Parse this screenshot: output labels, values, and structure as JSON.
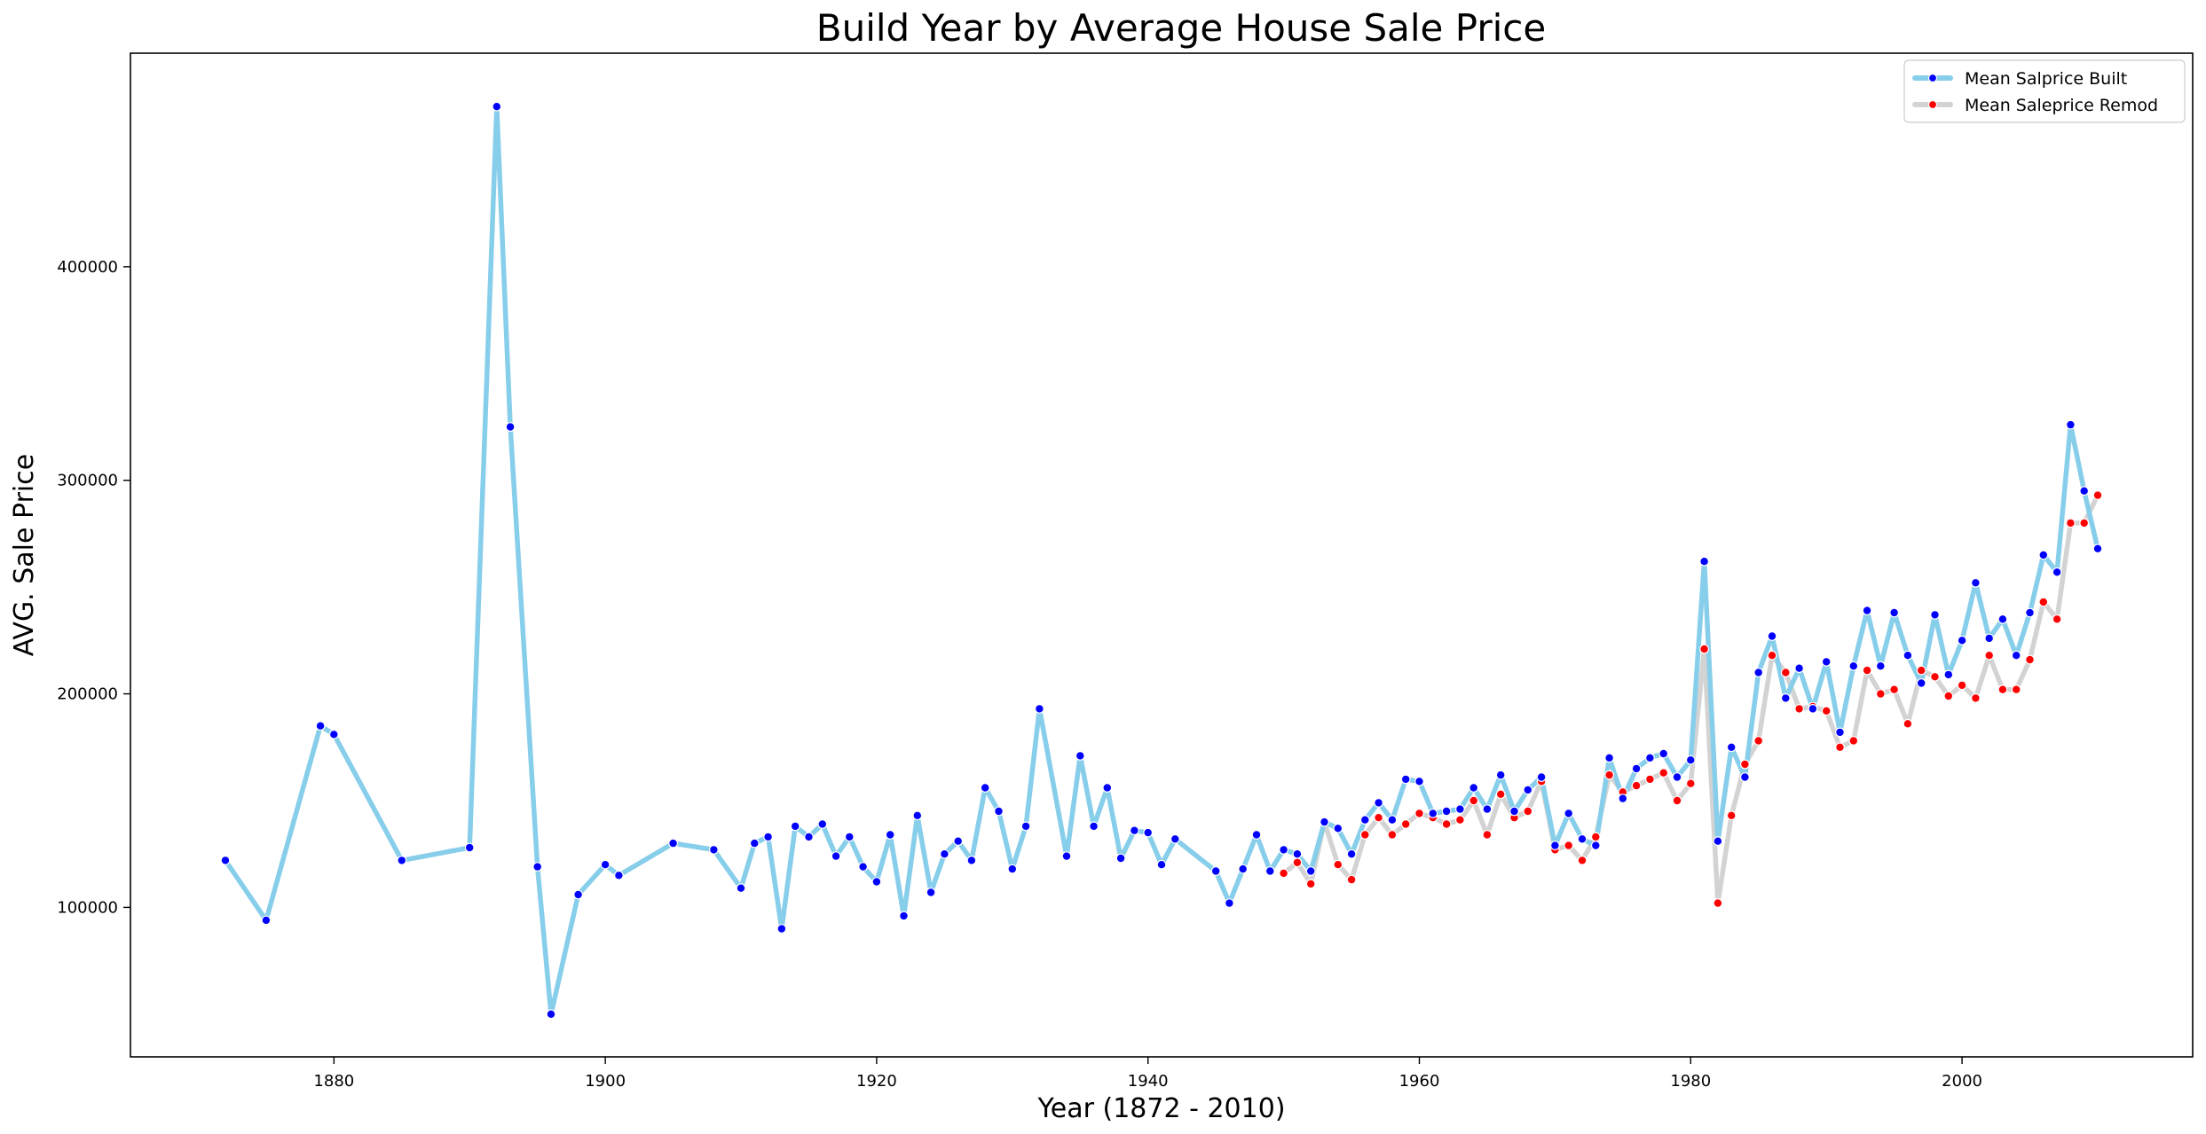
{
  "chart_data": {
    "type": "line",
    "title": "Build Year by Average House Sale Price",
    "xlabel": "Year (1872 - 2010)",
    "ylabel": "AVG. Sale Price",
    "xlim": [
      1865,
      2017
    ],
    "ylim": [
      30000,
      500000
    ],
    "xticks": [
      1880,
      1900,
      1920,
      1940,
      1960,
      1980,
      2000
    ],
    "yticks": [
      100000,
      200000,
      300000,
      400000
    ],
    "legend_position": "top-right",
    "grid": false,
    "series": [
      {
        "name": "Mean Salprice Built",
        "line_color": "#87ceeb",
        "marker_color": "#0000ff",
        "points": [
          [
            1872,
            122000
          ],
          [
            1875,
            94000
          ],
          [
            1879,
            185000
          ],
          [
            1880,
            181000
          ],
          [
            1885,
            122000
          ],
          [
            1890,
            128000
          ],
          [
            1892,
            475000
          ],
          [
            1893,
            325000
          ],
          [
            1895,
            119000
          ],
          [
            1896,
            50000
          ],
          [
            1898,
            106000
          ],
          [
            1900,
            120000
          ],
          [
            1901,
            115000
          ],
          [
            1905,
            130000
          ],
          [
            1908,
            127000
          ],
          [
            1910,
            109000
          ],
          [
            1911,
            130000
          ],
          [
            1912,
            133000
          ],
          [
            1913,
            90000
          ],
          [
            1914,
            138000
          ],
          [
            1915,
            133000
          ],
          [
            1916,
            139000
          ],
          [
            1917,
            124000
          ],
          [
            1918,
            133000
          ],
          [
            1919,
            119000
          ],
          [
            1920,
            112000
          ],
          [
            1921,
            134000
          ],
          [
            1922,
            96000
          ],
          [
            1923,
            143000
          ],
          [
            1924,
            107000
          ],
          [
            1925,
            125000
          ],
          [
            1926,
            131000
          ],
          [
            1927,
            122000
          ],
          [
            1928,
            156000
          ],
          [
            1929,
            145000
          ],
          [
            1930,
            118000
          ],
          [
            1931,
            138000
          ],
          [
            1932,
            193000
          ],
          [
            1934,
            124000
          ],
          [
            1935,
            171000
          ],
          [
            1936,
            138000
          ],
          [
            1937,
            156000
          ],
          [
            1938,
            123000
          ],
          [
            1939,
            136000
          ],
          [
            1940,
            135000
          ],
          [
            1941,
            120000
          ],
          [
            1942,
            132000
          ],
          [
            1945,
            117000
          ],
          [
            1946,
            102000
          ],
          [
            1947,
            118000
          ],
          [
            1948,
            134000
          ],
          [
            1949,
            117000
          ],
          [
            1950,
            127000
          ],
          [
            1951,
            125000
          ],
          [
            1952,
            117000
          ],
          [
            1953,
            140000
          ],
          [
            1954,
            137000
          ],
          [
            1955,
            125000
          ],
          [
            1956,
            141000
          ],
          [
            1957,
            149000
          ],
          [
            1958,
            141000
          ],
          [
            1959,
            160000
          ],
          [
            1960,
            159000
          ],
          [
            1961,
            144000
          ],
          [
            1962,
            145000
          ],
          [
            1963,
            146000
          ],
          [
            1964,
            156000
          ],
          [
            1965,
            146000
          ],
          [
            1966,
            162000
          ],
          [
            1967,
            145000
          ],
          [
            1968,
            155000
          ],
          [
            1969,
            161000
          ],
          [
            1970,
            129000
          ],
          [
            1971,
            144000
          ],
          [
            1972,
            132000
          ],
          [
            1973,
            129000
          ],
          [
            1974,
            170000
          ],
          [
            1975,
            151000
          ],
          [
            1976,
            165000
          ],
          [
            1977,
            170000
          ],
          [
            1978,
            172000
          ],
          [
            1979,
            161000
          ],
          [
            1980,
            169000
          ],
          [
            1981,
            262000
          ],
          [
            1982,
            131000
          ],
          [
            1983,
            175000
          ],
          [
            1984,
            161000
          ],
          [
            1985,
            210000
          ],
          [
            1986,
            227000
          ],
          [
            1987,
            198000
          ],
          [
            1988,
            212000
          ],
          [
            1989,
            193000
          ],
          [
            1990,
            215000
          ],
          [
            1991,
            182000
          ],
          [
            1992,
            213000
          ],
          [
            1993,
            239000
          ],
          [
            1994,
            213000
          ],
          [
            1995,
            238000
          ],
          [
            1996,
            218000
          ],
          [
            1997,
            205000
          ],
          [
            1998,
            237000
          ],
          [
            1999,
            209000
          ],
          [
            2000,
            225000
          ],
          [
            2001,
            252000
          ],
          [
            2002,
            226000
          ],
          [
            2003,
            235000
          ],
          [
            2004,
            218000
          ],
          [
            2005,
            238000
          ],
          [
            2006,
            265000
          ],
          [
            2007,
            257000
          ],
          [
            2008,
            326000
          ],
          [
            2009,
            295000
          ],
          [
            2010,
            268000
          ]
        ]
      },
      {
        "name": "Mean Saleprice Remod",
        "line_color": "#d3d3d3",
        "marker_color": "#ff0000",
        "points": [
          [
            1950,
            116000
          ],
          [
            1951,
            121000
          ],
          [
            1952,
            111000
          ],
          [
            1953,
            140000
          ],
          [
            1954,
            120000
          ],
          [
            1955,
            113000
          ],
          [
            1956,
            134000
          ],
          [
            1957,
            142000
          ],
          [
            1958,
            134000
          ],
          [
            1959,
            139000
          ],
          [
            1960,
            144000
          ],
          [
            1961,
            142000
          ],
          [
            1962,
            139000
          ],
          [
            1963,
            141000
          ],
          [
            1964,
            150000
          ],
          [
            1965,
            134000
          ],
          [
            1966,
            153000
          ],
          [
            1967,
            142000
          ],
          [
            1968,
            145000
          ],
          [
            1969,
            159000
          ],
          [
            1970,
            127000
          ],
          [
            1971,
            129000
          ],
          [
            1972,
            122000
          ],
          [
            1973,
            133000
          ],
          [
            1974,
            162000
          ],
          [
            1975,
            154000
          ],
          [
            1976,
            157000
          ],
          [
            1977,
            160000
          ],
          [
            1978,
            163000
          ],
          [
            1979,
            150000
          ],
          [
            1980,
            158000
          ],
          [
            1981,
            221000
          ],
          [
            1982,
            102000
          ],
          [
            1983,
            143000
          ],
          [
            1984,
            167000
          ],
          [
            1985,
            178000
          ],
          [
            1986,
            218000
          ],
          [
            1987,
            210000
          ],
          [
            1988,
            193000
          ],
          [
            1989,
            194000
          ],
          [
            1990,
            192000
          ],
          [
            1991,
            175000
          ],
          [
            1992,
            178000
          ],
          [
            1993,
            211000
          ],
          [
            1994,
            200000
          ],
          [
            1995,
            202000
          ],
          [
            1996,
            186000
          ],
          [
            1997,
            211000
          ],
          [
            1998,
            208000
          ],
          [
            1999,
            199000
          ],
          [
            2000,
            204000
          ],
          [
            2001,
            198000
          ],
          [
            2002,
            218000
          ],
          [
            2003,
            202000
          ],
          [
            2004,
            202000
          ],
          [
            2005,
            216000
          ],
          [
            2006,
            243000
          ],
          [
            2007,
            235000
          ],
          [
            2008,
            280000
          ],
          [
            2009,
            280000
          ],
          [
            2010,
            293000
          ]
        ]
      }
    ]
  }
}
